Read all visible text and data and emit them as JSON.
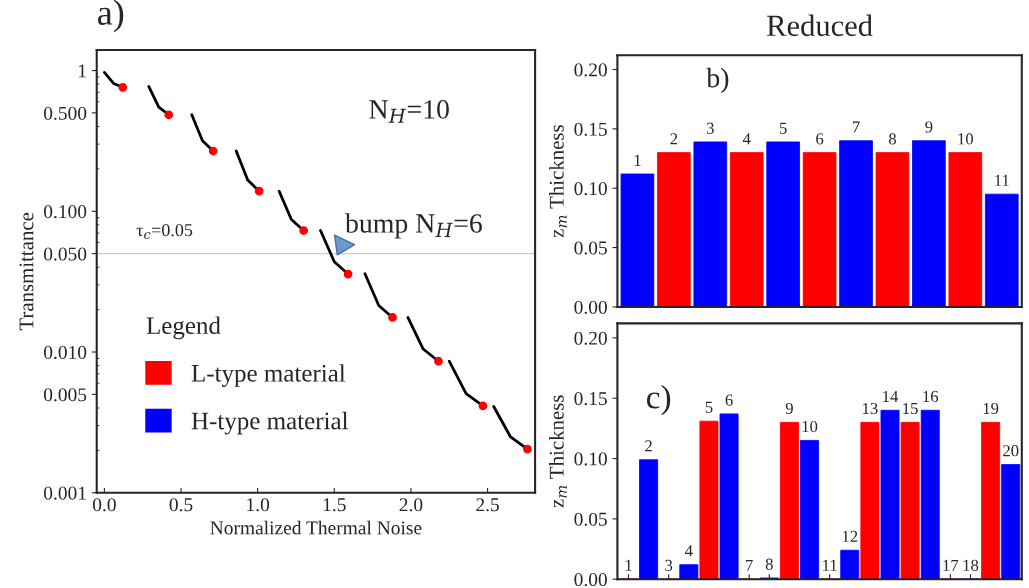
{
  "chart_data": [
    {
      "type": "line",
      "xlabel": "Normalized Thermal Noise",
      "ylabel": "Transmittance",
      "log": "y",
      "xlim": [
        -0.05,
        2.81
      ],
      "ylim": [
        0.001,
        1.4
      ],
      "xticks": [
        {
          "value": 0,
          "label": "0.0"
        },
        0.5,
        {
          "value": 1,
          "label": "1.0"
        },
        1.5,
        {
          "value": 2,
          "label": "2.0"
        },
        2.5
      ],
      "yticks": [
        {
          "value": 0.001,
          "label": "0.001"
        },
        {
          "value": 0.005,
          "label": "0.005"
        },
        {
          "value": 0.01,
          "label": "0.010"
        },
        {
          "value": 0.05,
          "label": "0.050"
        },
        {
          "value": 0.1,
          "label": "0.100"
        },
        {
          "value": 0.5,
          "label": "0.500"
        },
        1
      ],
      "ref_lines": [
        {
          "axis": "y",
          "value": 0.05,
          "label": "τ$_{c}$=0.05",
          "color": "#cccccc"
        }
      ],
      "annotations": [
        "a)",
        "N$_{H}$=10",
        {
          "text": "bump N$_{H}$=6",
          "x": 1.52,
          "y": 0.049
        }
      ],
      "series": [
        {
          "color": "#000000",
          "x": [
            0.0,
            0.06,
            0.12
          ],
          "values": [
            0.97,
            0.81,
            0.76
          ]
        },
        {
          "color": "#000000",
          "x": [
            0.29,
            0.355,
            0.42
          ],
          "values": [
            0.77,
            0.55,
            0.485
          ]
        },
        {
          "color": "#000000",
          "x": [
            0.57,
            0.64,
            0.71
          ],
          "values": [
            0.485,
            0.317,
            0.268
          ]
        },
        {
          "color": "#000000",
          "x": [
            0.86,
            0.935,
            1.01
          ],
          "values": [
            0.268,
            0.167,
            0.139
          ]
        },
        {
          "color": "#000000",
          "x": [
            1.14,
            1.22,
            1.3
          ],
          "values": [
            0.139,
            0.0875,
            0.073
          ]
        },
        {
          "color": "#000000",
          "x": [
            1.41,
            1.5,
            1.59
          ],
          "values": [
            0.073,
            0.0438,
            0.0358
          ]
        },
        {
          "color": "#000000",
          "x": [
            1.7,
            1.79,
            1.88
          ],
          "values": [
            0.036,
            0.0214,
            0.0176
          ]
        },
        {
          "color": "#000000",
          "x": [
            1.98,
            2.08,
            2.18
          ],
          "values": [
            0.0176,
            0.0105,
            0.0086
          ]
        },
        {
          "color": "#000000",
          "x": [
            2.25,
            2.36,
            2.47
          ],
          "values": [
            0.0086,
            0.00507,
            0.00414
          ]
        },
        {
          "color": "#000000",
          "x": [
            2.54,
            2.65,
            2.76
          ],
          "values": [
            0.0041,
            0.00249,
            0.00204
          ]
        },
        {
          "type": "scatter",
          "marker": "circle",
          "color": "#ff0000",
          "x": [
            0.12,
            0.42,
            0.71,
            1.01,
            1.3,
            1.59,
            1.88,
            2.18,
            2.47,
            2.76
          ],
          "values": [
            0.76,
            0.485,
            0.268,
            0.139,
            0.073,
            0.0358,
            0.0176,
            0.0086,
            0.00414,
            0.00204
          ]
        }
      ]
    },
    {
      "type": "bar",
      "title": "Reduced",
      "ylabel": "z$_{m}$ Thickness",
      "ylim": [
        0,
        0.212
      ],
      "yticks": [
        {
          "value": 0,
          "label": "0.00"
        },
        0.05,
        {
          "value": 0.1,
          "label": "0.10"
        },
        0.15,
        {
          "value": 0.2,
          "label": "0.20"
        }
      ],
      "tick_labels": "y",
      "annotations": [
        "b)"
      ],
      "legend": "left",
      "legend_title": "Legend",
      "categories": [
        null,
        null,
        null,
        null,
        null,
        null,
        null,
        null,
        null,
        null,
        null
      ],
      "value_labels": [
        "1",
        "2",
        "3",
        "4",
        "5",
        "6",
        "7",
        "8",
        "9",
        "10",
        "11"
      ],
      "series": [
        {
          "name": "L-type material",
          "color": "#ff0000",
          "values": [
            null,
            0.13,
            null,
            0.13,
            null,
            0.13,
            null,
            0.13,
            null,
            0.13,
            null
          ]
        },
        {
          "name": "H-type material",
          "color": "#0000ff",
          "values": [
            0.112,
            null,
            0.139,
            null,
            0.139,
            null,
            0.14,
            null,
            0.14,
            null,
            0.095
          ]
        }
      ]
    },
    {
      "type": "bar",
      "ylabel": "z$_{m}$ Thickness",
      "ylim": [
        0,
        0.212
      ],
      "yticks": [
        {
          "value": 0,
          "label": "0.00"
        },
        0.05,
        {
          "value": 0.1,
          "label": "0.10"
        },
        0.15,
        {
          "value": 0.2,
          "label": "0.20"
        }
      ],
      "tick_labels": "y",
      "annotations": [
        "c)"
      ],
      "categories": [
        null,
        null,
        null,
        null,
        null,
        null,
        null,
        null,
        null,
        null,
        null,
        null,
        null,
        null,
        null,
        null,
        null,
        null,
        null,
        null
      ],
      "value_labels": [
        "1",
        "2",
        "3",
        "4",
        "5",
        "6",
        "7",
        "8",
        "9",
        "10",
        "11",
        "12",
        "13",
        "14",
        "15",
        "16",
        "17",
        "18",
        "19",
        "20"
      ],
      "series": [
        {
          "color": "#ff0000",
          "values": [
            0,
            null,
            0,
            null,
            0.131,
            null,
            0,
            null,
            0.13,
            null,
            0,
            null,
            0.13,
            null,
            0.13,
            null,
            0,
            null,
            0.13,
            null
          ]
        },
        {
          "color": "#0000ff",
          "values": [
            null,
            0.099,
            null,
            0.012,
            null,
            0.137,
            null,
            0.001,
            null,
            0.115,
            null,
            0.024,
            null,
            0.14,
            null,
            0.14,
            null,
            0,
            null,
            0.095
          ]
        }
      ]
    }
  ]
}
